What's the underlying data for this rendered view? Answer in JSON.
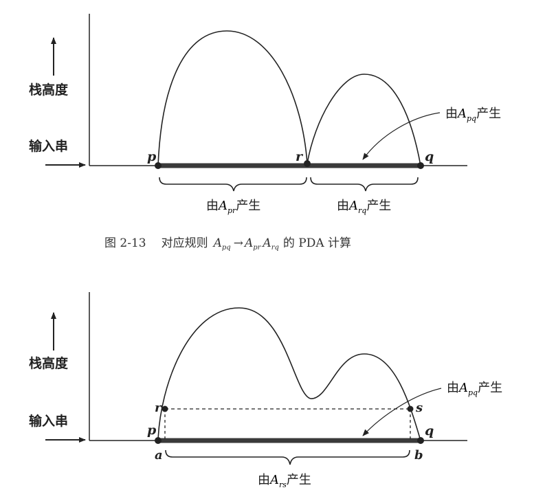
{
  "figure_1": {
    "y_axis_label": "栈高度",
    "x_axis_label": "输入串",
    "points": {
      "p": "p",
      "r": "r",
      "q": "q"
    },
    "annotation": {
      "prefix": "由",
      "var": "A",
      "sub": "pq",
      "suffix": "产生"
    },
    "brace_left": {
      "prefix": "由",
      "var": "A",
      "sub": "pr",
      "suffix": "产生"
    },
    "brace_right": {
      "prefix": "由",
      "var": "A",
      "sub": "rq",
      "suffix": "产生"
    },
    "caption": {
      "number": "图 2-13",
      "text_before": "对应规则",
      "rule": {
        "lhs": "A",
        "lhs_sub": "pq",
        "arrow": "→",
        "r1": "A",
        "r1_sub": "pr",
        "r2": "A",
        "r2_sub": "rq"
      },
      "text_after": "的 PDA 计算"
    }
  },
  "figure_2": {
    "y_axis_label": "栈高度",
    "x_axis_label": "输入串",
    "points": {
      "p": "p",
      "q": "q",
      "r": "r",
      "s": "s",
      "a": "a",
      "b": "b"
    },
    "annotation": {
      "prefix": "由",
      "var": "A",
      "sub": "pq",
      "suffix": "产生"
    },
    "brace": {
      "prefix": "由",
      "var": "A",
      "sub": "rs",
      "suffix": "产生"
    }
  },
  "colors": {
    "ink": "#222222",
    "bar": "#3a3a3a"
  }
}
